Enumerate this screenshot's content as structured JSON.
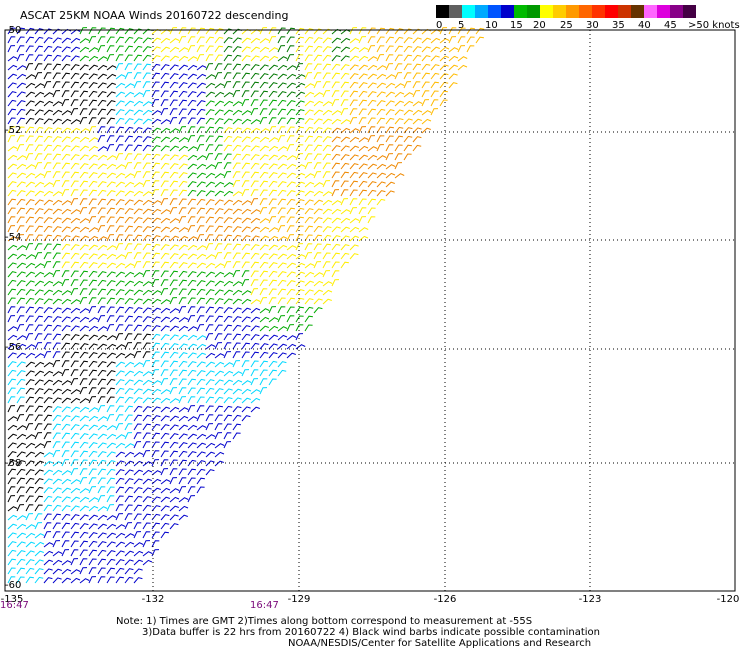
{
  "title": "ASCAT 25KM NOAA Winds 20160722 descending",
  "colorbar": {
    "colors": [
      "#000000",
      "#606060",
      "#00ffff",
      "#00aaff",
      "#0055ff",
      "#0000cc",
      "#00bb00",
      "#009900",
      "#ffff00",
      "#ffcc00",
      "#ff9900",
      "#ff6600",
      "#ff3300",
      "#ff0000",
      "#cc3300",
      "#663300",
      "#ff66ff",
      "#dd00dd",
      "#880088",
      "#440044"
    ],
    "labels": [
      "0",
      "5",
      "10",
      "15",
      "20",
      "25",
      "30",
      "35",
      "40",
      "45",
      ">50 knots"
    ]
  },
  "lat_labels": [
    "-50",
    "-52",
    "-54",
    "-56",
    "-58",
    "-60"
  ],
  "lon_labels": [
    "-135",
    "-132",
    "-129",
    "-126",
    "-123",
    "-120"
  ],
  "times": [
    "16:47",
    "16:47"
  ],
  "notes": [
    "Note: 1) Times are GMT 2)Times along bottom correspond to measurement at -55S",
    "3)Data buffer is 22 hrs from 20160722 4) Black wind barbs indicate possible contamination",
    "NOAA/NESDIS/Center for Satellite Applications and Research"
  ],
  "wind_colors": {
    "black": "#000000",
    "cyan": "#00d8ff",
    "blue": "#0000cc",
    "green": "#00aa00",
    "darkgreen": "#007700",
    "yellow": "#ffee00",
    "gold": "#ffbb00",
    "orange": "#ee8800"
  }
}
